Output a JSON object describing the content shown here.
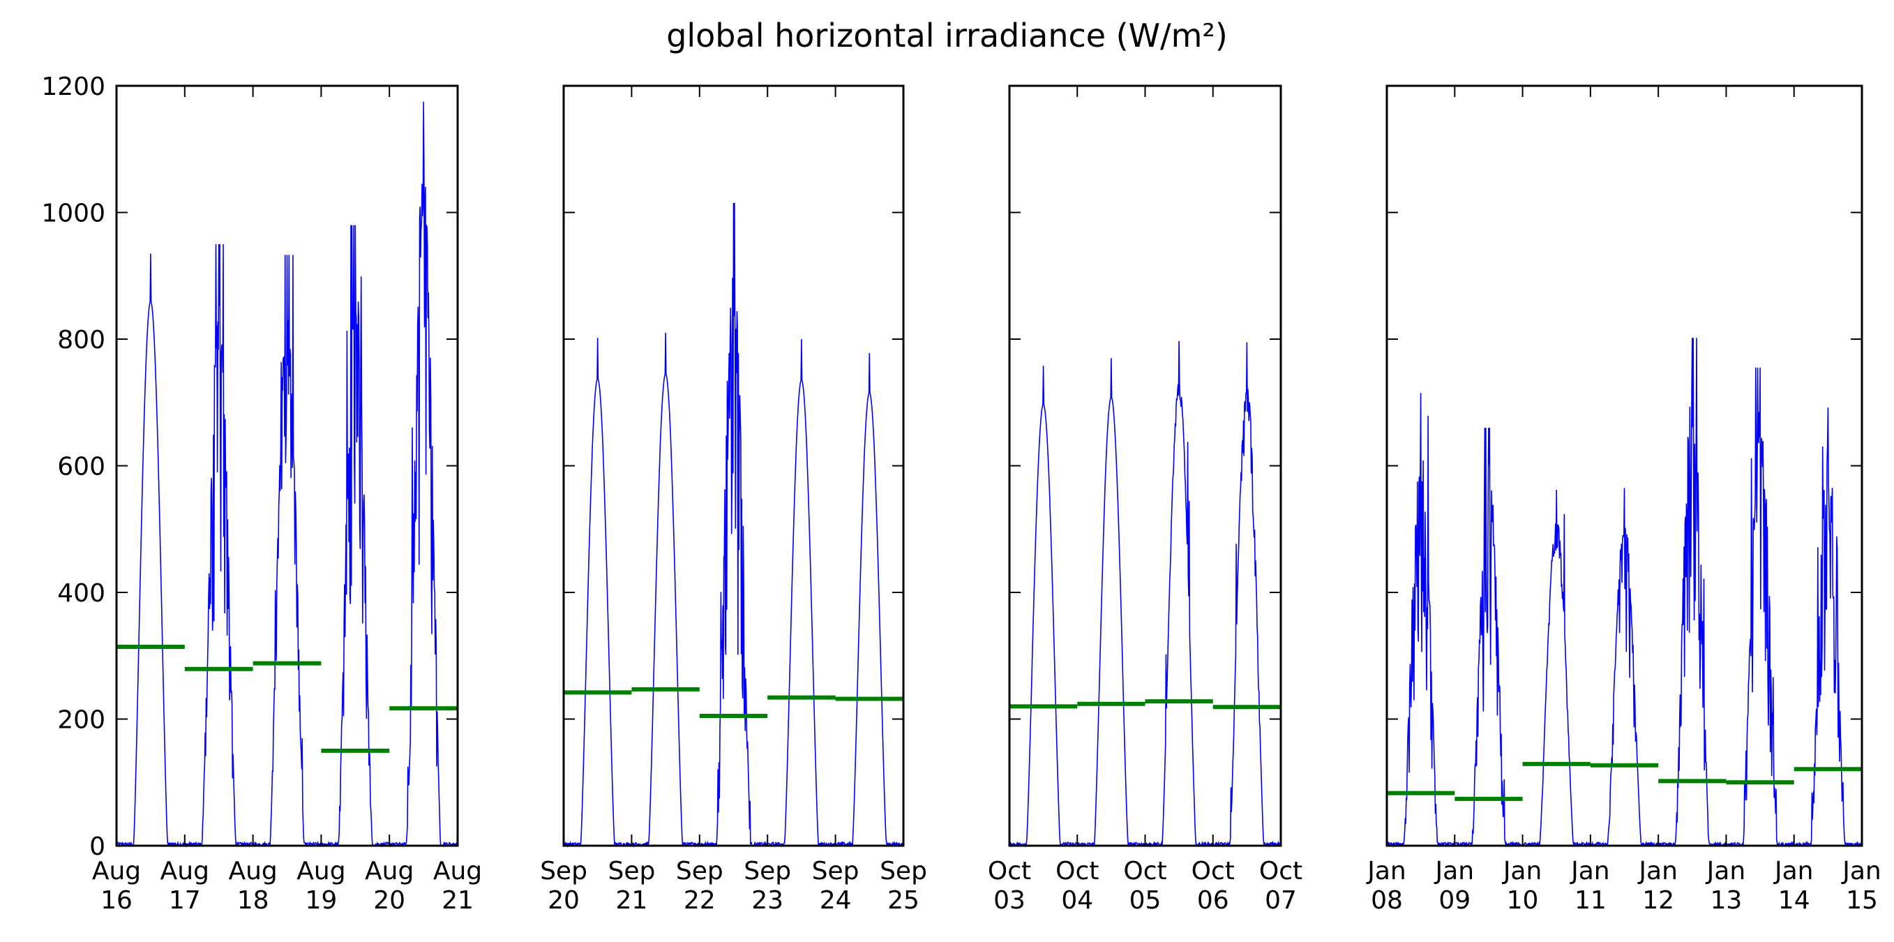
{
  "title": "global horizontal irradiance (W/m²)",
  "chart_data": {
    "type": "line",
    "title": "global horizontal irradiance (W/m²)",
    "ylim": [
      0,
      1200
    ],
    "yticks": [
      "0",
      "200",
      "400",
      "600",
      "800",
      "1000",
      "1200"
    ],
    "grid": false,
    "series_colors": {
      "irradiance": "#0000ff",
      "daily_mean": "#008000"
    },
    "panels": [
      {
        "xticks": [
          [
            "Aug",
            "16"
          ],
          [
            "Aug",
            "17"
          ],
          [
            "Aug",
            "18"
          ],
          [
            "Aug",
            "19"
          ],
          [
            "Aug",
            "20"
          ],
          [
            "Aug",
            "21"
          ]
        ],
        "daily_peaks": [
          935,
          950,
          933,
          980,
          1175
        ],
        "daily_means": [
          314,
          279,
          288,
          150,
          217
        ],
        "variability": [
          0.02,
          0.55,
          0.3,
          0.55,
          0.6
        ]
      },
      {
        "xticks": [
          [
            "Sep",
            "20"
          ],
          [
            "Sep",
            "21"
          ],
          [
            "Sep",
            "22"
          ],
          [
            "Sep",
            "23"
          ],
          [
            "Sep",
            "24"
          ],
          [
            "Sep",
            "25"
          ]
        ],
        "daily_peaks": [
          802,
          810,
          1015,
          800,
          778
        ],
        "daily_means": [
          242,
          247,
          205,
          234,
          232
        ],
        "variability": [
          0.0,
          0.0,
          0.65,
          0.0,
          0.01
        ]
      },
      {
        "xticks": [
          [
            "Oct",
            "03"
          ],
          [
            "Oct",
            "04"
          ],
          [
            "Oct",
            "05"
          ],
          [
            "Oct",
            "06"
          ],
          [
            "Oct",
            "07"
          ]
        ],
        "daily_peaks": [
          758,
          770,
          797,
          795
        ],
        "daily_means": [
          220,
          224,
          228,
          219
        ],
        "variability": [
          0.0,
          0.02,
          0.04,
          0.12
        ]
      },
      {
        "xticks": [
          [
            "Jan",
            "08"
          ],
          [
            "Jan",
            "09"
          ],
          [
            "Jan",
            "10"
          ],
          [
            "Jan",
            "11"
          ],
          [
            "Jan",
            "12"
          ],
          [
            "Jan",
            "13"
          ],
          [
            "Jan",
            "14"
          ],
          [
            "Jan",
            "15"
          ]
        ],
        "daily_peaks": [
          715,
          660,
          562,
          565,
          802,
          755,
          692
        ],
        "daily_means": [
          83,
          74,
          129,
          127,
          102,
          100,
          121
        ],
        "variability": [
          0.6,
          0.6,
          0.1,
          0.4,
          0.55,
          0.6,
          0.55
        ]
      }
    ]
  }
}
